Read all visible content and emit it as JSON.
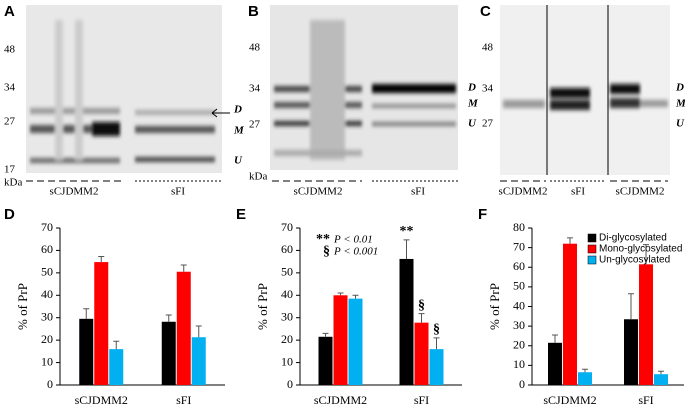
{
  "blots": [
    {
      "panel": "A",
      "markers": [
        "48",
        "34",
        "27",
        "17"
      ],
      "unit": "kDa",
      "groups": [
        "sCJDMM2",
        "sFI"
      ],
      "bands": [
        "D",
        "M",
        "U"
      ]
    },
    {
      "panel": "B",
      "markers": [
        "48",
        "34",
        "27"
      ],
      "unit": "kDa",
      "groups": [
        "sCJDMM2",
        "sFI"
      ],
      "bands": [
        "D",
        "M",
        "U"
      ]
    },
    {
      "panel": "C",
      "markers": [
        "48",
        "34",
        "27"
      ],
      "groups": [
        "sCJDMM2",
        "sFI",
        "sCJDMM2"
      ],
      "bands": [
        "D",
        "M",
        "U"
      ]
    }
  ],
  "chart_data": [
    {
      "panel": "D",
      "type": "bar",
      "ylabel": "% of PrP",
      "categories": [
        "sCJDMM2",
        "sFI"
      ],
      "series": [
        {
          "color": "#000000",
          "values": [
            29.5,
            28.2
          ],
          "errors": [
            4.5,
            3
          ]
        },
        {
          "color": "#ff0000",
          "values": [
            54.8,
            50.5
          ],
          "errors": [
            2.5,
            3
          ]
        },
        {
          "color": "#00b0f0",
          "values": [
            16,
            21.3
          ],
          "errors": [
            3.5,
            5
          ]
        }
      ],
      "ylim": [
        0,
        70
      ],
      "yticks": [
        0,
        10,
        20,
        30,
        40,
        50,
        60,
        70
      ]
    },
    {
      "panel": "E",
      "type": "bar",
      "ylabel": "% of PrP",
      "categories": [
        "sCJDMM2",
        "sFI"
      ],
      "series": [
        {
          "color": "#000000",
          "values": [
            21.5,
            56.2
          ],
          "errors": [
            1.5,
            8.5
          ]
        },
        {
          "color": "#ff0000",
          "values": [
            40,
            27.8
          ],
          "errors": [
            1,
            4
          ]
        },
        {
          "color": "#00b0f0",
          "values": [
            38.5,
            16
          ],
          "errors": [
            1.5,
            5
          ]
        }
      ],
      "annotations": [
        {
          "text": "**",
          "series": 0,
          "category": 1
        },
        {
          "text": "§",
          "series": 1,
          "category": 1
        },
        {
          "text": "§",
          "series": 2,
          "category": 1
        }
      ],
      "significance": [
        {
          "symbol": "**",
          "text": "P < 0.01"
        },
        {
          "symbol": "§",
          "text": "P < 0.001"
        }
      ],
      "ylim": [
        0,
        70
      ],
      "yticks": [
        0,
        10,
        20,
        30,
        40,
        50,
        60,
        70
      ]
    },
    {
      "panel": "F",
      "type": "bar",
      "ylabel": "% of PrP",
      "categories": [
        "sCJDMM2",
        "sFI"
      ],
      "series": [
        {
          "name": "Di-glycosylated",
          "color": "#000000",
          "values": [
            21.5,
            33.5
          ],
          "errors": [
            4,
            13
          ]
        },
        {
          "name": "Mono-glycosylated",
          "color": "#ff0000",
          "values": [
            72,
            61.5
          ],
          "errors": [
            3,
            10
          ]
        },
        {
          "name": "Un-glycosylated",
          "color": "#00b0f0",
          "values": [
            6.5,
            5.5
          ],
          "errors": [
            1.5,
            1.5
          ]
        }
      ],
      "ylim": [
        0,
        80
      ],
      "yticks": [
        0,
        10,
        20,
        30,
        40,
        50,
        60,
        70,
        80
      ]
    }
  ]
}
